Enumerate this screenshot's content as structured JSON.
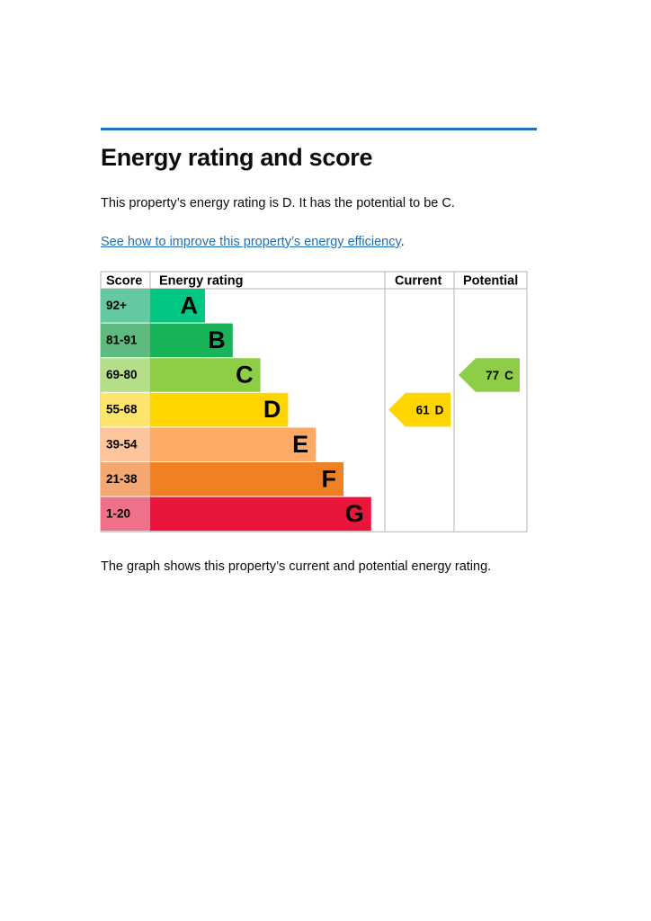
{
  "title": "Energy rating and score",
  "intro": "This property’s energy rating is D. It has the potential to be C.",
  "link": {
    "text": "See how to improve this property’s energy efficiency",
    "suffix": "."
  },
  "table": {
    "headers": [
      "Score",
      "Energy rating",
      "Current",
      "Potential"
    ],
    "bands": [
      {
        "score": "92+",
        "letter": "A",
        "color": "#00c781",
        "score_color": "#64c8a3"
      },
      {
        "score": "81-91",
        "letter": "B",
        "color": "#19b459",
        "score_color": "#5fba7f"
      },
      {
        "score": "69-80",
        "letter": "C",
        "color": "#8dce46",
        "score_color": "#b5de8b"
      },
      {
        "score": "55-68",
        "letter": "D",
        "color": "#ffd500",
        "score_color": "#fde46d"
      },
      {
        "score": "39-54",
        "letter": "E",
        "color": "#fcaa65",
        "score_color": "#fcc59c"
      },
      {
        "score": "21-38",
        "letter": "F",
        "color": "#ef8023",
        "score_color": "#f3a872"
      },
      {
        "score": "1-20",
        "letter": "G",
        "color": "#e9153b",
        "score_color": "#ef7089"
      }
    ],
    "current": {
      "score": 61,
      "letter": "D"
    },
    "potential": {
      "score": 77,
      "letter": "C"
    }
  },
  "footer": "The graph shows this property’s current and potential energy rating."
}
